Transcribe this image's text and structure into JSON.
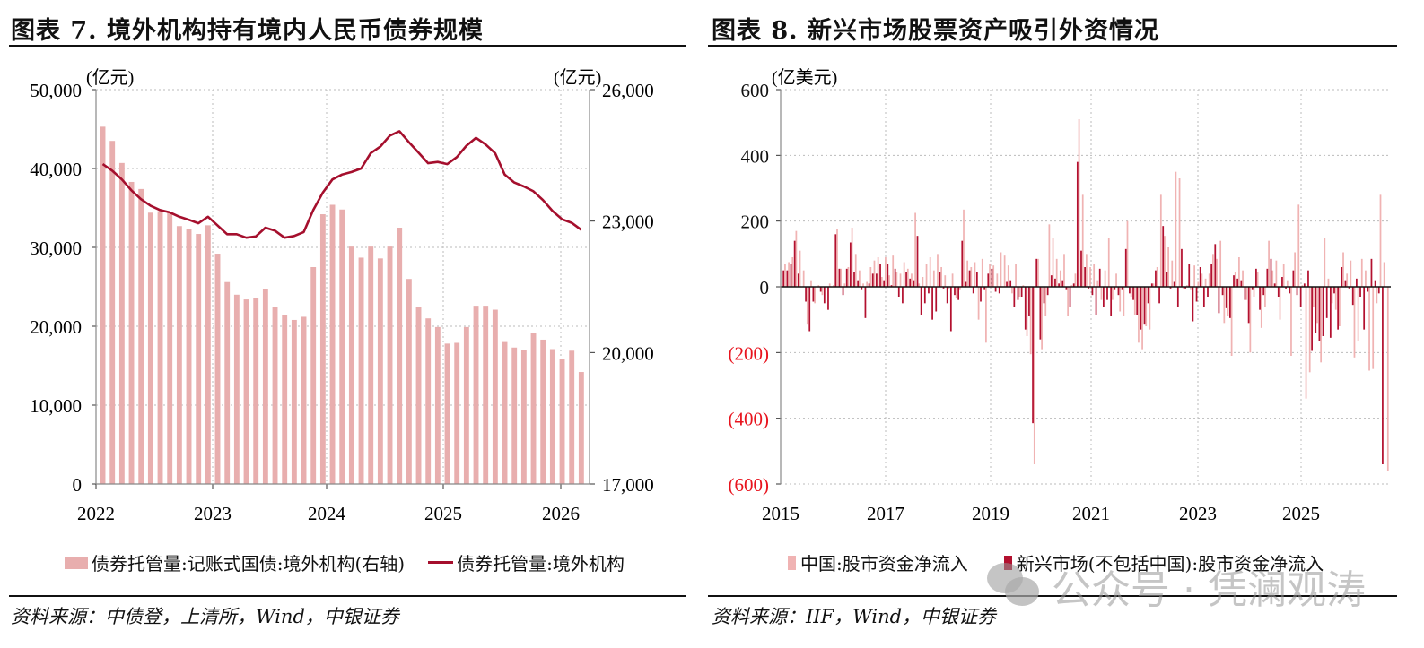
{
  "left_panel": {
    "title": "图表 7. 境外机构持有境内人民币债券规模",
    "source": "资料来源：中债登，上清所，Wind，中银证券",
    "legend": [
      {
        "label": "债券托管量:记账式国债:境外机构(右轴)",
        "type": "bar",
        "color": "#e8aeae"
      },
      {
        "label": "债券托管量:境外机构",
        "type": "line",
        "color": "#a50f2d"
      }
    ]
  },
  "right_panel": {
    "title": "图表 8. 新兴市场股票资产吸引外资情况",
    "source": "资料来源：IIF，Wind，中银证券",
    "legend": [
      {
        "label": "中国:股市资金净流入",
        "color": "#f0b3b3"
      },
      {
        "label": "新兴市场(不包括中国):股市资金净流入",
        "color": "#b3102f"
      }
    ],
    "watermark": "公众号 · 凭澜观涛"
  },
  "chart_data": [
    {
      "type": "bar+line",
      "title": "图表 7. 境外机构持有境内人民币债券规模",
      "left_axis": {
        "unit": "(亿元)",
        "ticks": [
          "0",
          "10,000",
          "20,000",
          "30,000",
          "40,000",
          "50,000"
        ],
        "range": [
          0,
          50000
        ]
      },
      "right_axis": {
        "unit": "(亿元)",
        "ticks": [
          "17,000",
          "20,000",
          "23,000",
          "26,000"
        ],
        "range": [
          17000,
          26000
        ]
      },
      "x_ticks": [
        "2022",
        "2023",
        "2024",
        "2025",
        "2026"
      ],
      "grid": true,
      "legend_position": "bottom",
      "series": [
        {
          "name": "债券托管量:记账式国债:境外机构(右轴)",
          "type": "bar",
          "axis": "left",
          "color": "#e8aeae",
          "values": [
            45300,
            43500,
            40700,
            38300,
            37400,
            34400,
            34600,
            34500,
            32700,
            32300,
            31700,
            32800,
            29200,
            25600,
            24000,
            23400,
            23600,
            24700,
            22400,
            21400,
            20800,
            21200,
            27500,
            34200,
            35400,
            34800,
            30100,
            28700,
            30100,
            28600,
            30100,
            32500,
            26000,
            22400,
            21000,
            19900,
            17800,
            17900,
            19900,
            22600,
            22600,
            22100,
            18000,
            17300,
            17000,
            19100,
            18300,
            17100,
            15900,
            16900,
            14200
          ]
        },
        {
          "name": "债券托管量:境外机构",
          "type": "line",
          "axis": "right",
          "color": "#a50f2d",
          "values": [
            24300,
            24150,
            23950,
            23700,
            23500,
            23350,
            23250,
            23200,
            23100,
            23030,
            22950,
            23100,
            22900,
            22700,
            22700,
            22620,
            22650,
            22850,
            22780,
            22620,
            22660,
            22750,
            23250,
            23650,
            23950,
            24060,
            24120,
            24200,
            24550,
            24700,
            24950,
            25050,
            24800,
            24560,
            24320,
            24350,
            24300,
            24460,
            24720,
            24900,
            24750,
            24550,
            24060,
            23880,
            23790,
            23680,
            23480,
            23230,
            23040,
            22960,
            22800
          ]
        }
      ]
    },
    {
      "type": "bar",
      "title": "图表 8. 新兴市场股票资产吸引外资情况",
      "ylabel": "(亿美元)",
      "y_ticks": [
        "600",
        "400",
        "200",
        "0",
        "(200)",
        "(400)",
        "(600)"
      ],
      "ylim": [
        -600,
        600
      ],
      "x_ticks": [
        "2015",
        "2017",
        "2019",
        "2021",
        "2023",
        "2025"
      ],
      "grid": true,
      "legend_position": "bottom",
      "series": [
        {
          "name": "中国:股市资金净流入",
          "color": "#f0b3b3",
          "values": [
            70,
            75,
            90,
            170,
            110,
            50,
            -115,
            20,
            -50,
            5,
            -25,
            0,
            10,
            5,
            175,
            55,
            10,
            60,
            180,
            100,
            50,
            10,
            15,
            60,
            80,
            90,
            30,
            90,
            35,
            95,
            45,
            40,
            75,
            55,
            40,
            225,
            10,
            30,
            70,
            90,
            50,
            100,
            60,
            35,
            -5,
            40,
            -35,
            -10,
            235,
            80,
            60,
            75,
            -100,
            85,
            -170,
            70,
            65,
            40,
            105,
            95,
            65,
            -20,
            70,
            -30,
            5,
            -150,
            -205,
            -540,
            85,
            -190,
            -90,
            190,
            150,
            85,
            50,
            100,
            -90,
            5,
            40,
            510,
            280,
            100,
            60,
            70,
            20,
            -40,
            50,
            150,
            -40,
            40,
            -75,
            -90,
            200,
            -30,
            -85,
            -170,
            -190,
            -120,
            -130,
            10,
            60,
            280,
            155,
            120,
            80,
            350,
            330,
            -5,
            5,
            -10,
            65,
            15,
            40,
            25,
            40,
            100,
            85,
            140,
            -110,
            -90,
            -210,
            45,
            90,
            50,
            -40,
            -200,
            -30,
            45,
            -125,
            -60,
            140,
            50,
            80,
            -100,
            70,
            20,
            -210,
            105,
            250,
            5,
            -340,
            -260,
            -60,
            -110,
            -230,
            150,
            25,
            -50,
            -70,
            -120,
            105,
            40,
            80,
            -215,
            -165,
            85,
            50,
            -255,
            -250,
            -50,
            280,
            75,
            -560
          ]
        },
        {
          "name": "新兴市场(不包括中国):股市资金净流入",
          "color": "#b3102f",
          "values": [
            50,
            50,
            70,
            140,
            40,
            0,
            -45,
            -135,
            -45,
            0,
            -15,
            -50,
            -70,
            0,
            160,
            55,
            -25,
            55,
            135,
            45,
            20,
            -10,
            -95,
            10,
            40,
            40,
            70,
            20,
            70,
            5,
            55,
            -30,
            -50,
            45,
            25,
            20,
            155,
            -85,
            -50,
            -20,
            -100,
            -75,
            45,
            -5,
            -50,
            -135,
            -25,
            -40,
            140,
            15,
            50,
            -20,
            45,
            -45,
            -10,
            40,
            55,
            -15,
            -20,
            0,
            15,
            20,
            -60,
            -40,
            -30,
            -130,
            -90,
            -415,
            85,
            -160,
            -50,
            -25,
            35,
            25,
            10,
            20,
            -10,
            -60,
            10,
            380,
            110,
            60,
            -5,
            -25,
            -85,
            55,
            -60,
            -40,
            -90,
            -10,
            -25,
            -10,
            115,
            -20,
            -40,
            -85,
            -130,
            -115,
            -50,
            10,
            50,
            -50,
            185,
            45,
            -5,
            15,
            -60,
            115,
            -5,
            70,
            -105,
            -45,
            60,
            -60,
            -30,
            70,
            130,
            -80,
            -25,
            -65,
            -95,
            35,
            25,
            20,
            -40,
            -110,
            -10,
            55,
            -70,
            -25,
            55,
            85,
            10,
            -30,
            30,
            -5,
            -20,
            50,
            -25,
            -60,
            10,
            50,
            -195,
            -140,
            -165,
            -150,
            -95,
            -155,
            -20,
            -130,
            60,
            20,
            -5,
            -55,
            25,
            -30,
            -130,
            -15,
            85,
            20,
            -20,
            -540
          ]
        }
      ]
    }
  ]
}
